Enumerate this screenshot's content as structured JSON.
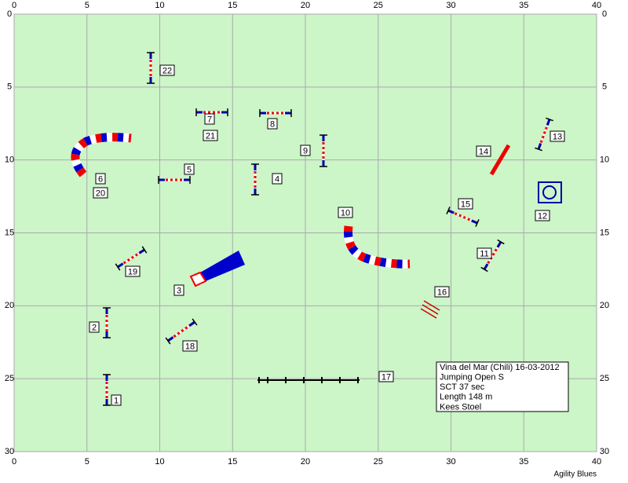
{
  "axes": {
    "x_ticks": [
      "0",
      "5",
      "10",
      "15",
      "20",
      "25",
      "30",
      "35",
      "40"
    ],
    "y_ticks": [
      "0",
      "5",
      "10",
      "15",
      "20",
      "25",
      "30"
    ]
  },
  "labels": [
    "1",
    "2",
    "3",
    "4",
    "5",
    "6",
    "7",
    "8",
    "9",
    "10",
    "11",
    "12",
    "13",
    "14",
    "15",
    "16",
    "17",
    "18",
    "19",
    "20",
    "21",
    "22"
  ],
  "info": [
    "Vina del Mar (Chili) 16-03-2012",
    "Jumping Open S",
    "SCT 37 sec",
    "Length 148 m",
    "Kees Stoel"
  ],
  "footer": "Agility Blues"
}
